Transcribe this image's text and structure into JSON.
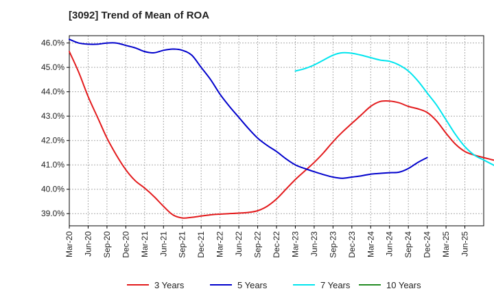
{
  "chart_data": {
    "type": "line",
    "title": "[3092]  Trend of Mean of ROA",
    "xlabel": "",
    "ylabel": "",
    "x_ticks": [
      "Mar-20",
      "Jun-20",
      "Sep-20",
      "Dec-20",
      "Mar-21",
      "Jun-21",
      "Sep-21",
      "Dec-21",
      "Mar-22",
      "Jun-22",
      "Sep-22",
      "Dec-22",
      "Mar-23",
      "Jun-23",
      "Sep-23",
      "Dec-23",
      "Mar-24",
      "Jun-24",
      "Sep-24",
      "Dec-24",
      "Mar-25",
      "Jun-25"
    ],
    "y_ticks": [
      "39.0%",
      "40.0%",
      "41.0%",
      "42.0%",
      "43.0%",
      "44.0%",
      "45.0%",
      "46.0%"
    ],
    "y_tick_values": [
      39,
      40,
      41,
      42,
      43,
      44,
      45,
      46
    ],
    "ylim": [
      38.5,
      46.3
    ],
    "grid": true,
    "legend_position": "bottom",
    "series": [
      {
        "name": "3 Years",
        "color": "#e31a1c",
        "points": [
          [
            0,
            45.65
          ],
          [
            1,
            44.8
          ],
          [
            2,
            43.8
          ],
          [
            3,
            42.95
          ],
          [
            4,
            42.1
          ],
          [
            5,
            41.4
          ],
          [
            6,
            40.8
          ],
          [
            7,
            40.35
          ],
          [
            8,
            40.05
          ],
          [
            9,
            39.7
          ],
          [
            10,
            39.3
          ],
          [
            11,
            38.95
          ],
          [
            12,
            38.82
          ],
          [
            13,
            38.85
          ],
          [
            14,
            38.9
          ],
          [
            15,
            38.95
          ],
          [
            16,
            38.98
          ],
          [
            17,
            39.0
          ],
          [
            18,
            39.02
          ],
          [
            19,
            39.05
          ],
          [
            20,
            39.12
          ],
          [
            21,
            39.3
          ],
          [
            22,
            39.6
          ],
          [
            23,
            40.0
          ],
          [
            24,
            40.4
          ],
          [
            25,
            40.75
          ],
          [
            26,
            41.1
          ],
          [
            27,
            41.5
          ],
          [
            28,
            41.95
          ],
          [
            29,
            42.35
          ],
          [
            30,
            42.7
          ],
          [
            31,
            43.05
          ],
          [
            32,
            43.4
          ],
          [
            33,
            43.6
          ],
          [
            34,
            43.62
          ],
          [
            35,
            43.55
          ],
          [
            36,
            43.4
          ],
          [
            37,
            43.3
          ],
          [
            38,
            43.15
          ],
          [
            39,
            42.8
          ],
          [
            40,
            42.3
          ],
          [
            41,
            41.85
          ],
          [
            42,
            41.55
          ],
          [
            43,
            41.4
          ],
          [
            44,
            41.3
          ],
          [
            45,
            41.2
          ],
          [
            46,
            41.15
          ]
        ]
      },
      {
        "name": "5 Years",
        "color": "#0000cc",
        "points": [
          [
            0,
            46.15
          ],
          [
            1,
            46.0
          ],
          [
            2,
            45.95
          ],
          [
            3,
            45.95
          ],
          [
            4,
            46.0
          ],
          [
            5,
            46.0
          ],
          [
            6,
            45.9
          ],
          [
            7,
            45.8
          ],
          [
            8,
            45.65
          ],
          [
            9,
            45.6
          ],
          [
            10,
            45.7
          ],
          [
            11,
            45.75
          ],
          [
            12,
            45.7
          ],
          [
            13,
            45.5
          ],
          [
            14,
            45.0
          ],
          [
            15,
            44.5
          ],
          [
            16,
            43.9
          ],
          [
            17,
            43.4
          ],
          [
            18,
            42.95
          ],
          [
            19,
            42.5
          ],
          [
            20,
            42.1
          ],
          [
            21,
            41.8
          ],
          [
            22,
            41.55
          ],
          [
            23,
            41.25
          ],
          [
            24,
            41.0
          ],
          [
            25,
            40.85
          ],
          [
            26,
            40.72
          ],
          [
            27,
            40.6
          ],
          [
            28,
            40.5
          ],
          [
            29,
            40.45
          ],
          [
            30,
            40.5
          ],
          [
            31,
            40.55
          ],
          [
            32,
            40.62
          ],
          [
            33,
            40.65
          ],
          [
            34,
            40.68
          ],
          [
            35,
            40.7
          ],
          [
            36,
            40.85
          ],
          [
            37,
            41.1
          ],
          [
            38,
            41.3
          ]
        ]
      },
      {
        "name": "7 Years",
        "color": "#00e5ee",
        "points": [
          [
            0,
            44.85
          ],
          [
            1,
            44.95
          ],
          [
            2,
            45.1
          ],
          [
            3,
            45.3
          ],
          [
            4,
            45.5
          ],
          [
            5,
            45.6
          ],
          [
            6,
            45.58
          ],
          [
            7,
            45.5
          ],
          [
            8,
            45.4
          ],
          [
            9,
            45.3
          ],
          [
            10,
            45.25
          ],
          [
            11,
            45.1
          ],
          [
            12,
            44.85
          ],
          [
            13,
            44.45
          ],
          [
            14,
            43.95
          ],
          [
            15,
            43.45
          ],
          [
            16,
            42.85
          ],
          [
            17,
            42.25
          ],
          [
            18,
            41.75
          ],
          [
            19,
            41.4
          ],
          [
            20,
            41.2
          ],
          [
            21,
            41.0
          ],
          [
            22,
            40.8
          ]
        ]
      },
      {
        "name": "10 Years",
        "color": "#228b22",
        "points": []
      }
    ]
  }
}
